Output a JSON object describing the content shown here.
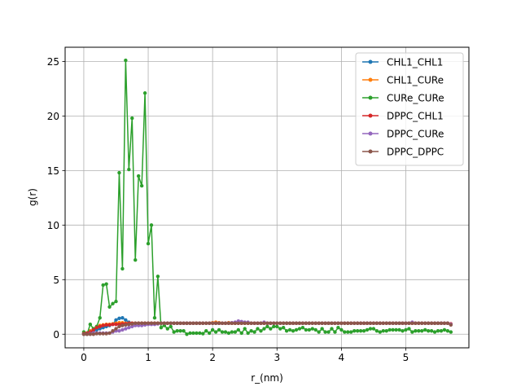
{
  "chart_data": {
    "type": "line",
    "title": "",
    "xlabel": "r_(nm)",
    "ylabel": "g(r)",
    "xlim": [
      -0.29,
      5.98
    ],
    "ylim": [
      -1.25,
      26.3
    ],
    "xticks": [
      0,
      1,
      2,
      3,
      4,
      5
    ],
    "yticks": [
      0,
      5,
      10,
      15,
      20,
      25
    ],
    "grid": true,
    "legend_position": "top-right",
    "x": [
      0.0,
      0.05,
      0.1,
      0.15,
      0.2,
      0.25,
      0.3,
      0.35,
      0.4,
      0.45,
      0.5,
      0.55,
      0.6,
      0.65,
      0.7,
      0.75,
      0.8,
      0.85,
      0.9,
      0.95,
      1.0,
      1.05,
      1.1,
      1.15,
      1.2,
      1.25,
      1.3,
      1.35,
      1.4,
      1.45,
      1.5,
      1.55,
      1.6,
      1.65,
      1.7,
      1.75,
      1.8,
      1.85,
      1.9,
      1.95,
      2.0,
      2.05,
      2.1,
      2.15,
      2.2,
      2.25,
      2.3,
      2.35,
      2.4,
      2.45,
      2.5,
      2.55,
      2.6,
      2.65,
      2.7,
      2.75,
      2.8,
      2.85,
      2.9,
      2.95,
      3.0,
      3.05,
      3.1,
      3.15,
      3.2,
      3.25,
      3.3,
      3.35,
      3.4,
      3.45,
      3.5,
      3.55,
      3.6,
      3.65,
      3.7,
      3.75,
      3.8,
      3.85,
      3.9,
      3.95,
      4.0,
      4.05,
      4.1,
      4.15,
      4.2,
      4.25,
      4.3,
      4.35,
      4.4,
      4.45,
      4.5,
      4.55,
      4.6,
      4.65,
      4.7,
      4.75,
      4.8,
      4.85,
      4.9,
      4.95,
      5.0,
      5.05,
      5.1,
      5.15,
      5.2,
      5.25,
      5.3,
      5.35,
      5.4,
      5.45,
      5.5,
      5.55,
      5.6,
      5.65,
      5.7
    ],
    "series": [
      {
        "name": "CHL1_CHL1",
        "color": "#1f77b4",
        "values": [
          0.05,
          0.1,
          0.2,
          0.3,
          0.4,
          0.5,
          0.6,
          0.7,
          0.8,
          0.9,
          1.3,
          1.45,
          1.5,
          1.3,
          1.1,
          1.0,
          0.95,
          1.0,
          1.0,
          1.0,
          1.0,
          1.0,
          1.0,
          1.0,
          1.0,
          1.0,
          1.0,
          1.0,
          1.0,
          1.0,
          1.0,
          1.0,
          1.0,
          1.0,
          1.0,
          1.0,
          1.0,
          1.0,
          1.0,
          1.0,
          1.0,
          1.0,
          1.0,
          1.0,
          1.0,
          1.0,
          1.0,
          1.0,
          1.0,
          1.0,
          1.0,
          1.0,
          1.0,
          1.0,
          1.0,
          1.0,
          1.0,
          1.0,
          1.0,
          1.0,
          1.0,
          1.0,
          1.0,
          1.0,
          1.0,
          1.0,
          1.0,
          1.0,
          1.0,
          1.0,
          1.0,
          1.0,
          1.0,
          1.0,
          1.0,
          1.0,
          1.0,
          1.0,
          1.0,
          1.0,
          1.0,
          1.0,
          1.0,
          1.0,
          1.0,
          1.0,
          1.0,
          1.0,
          1.0,
          1.0,
          1.0,
          1.0,
          1.0,
          1.0,
          1.0,
          1.0,
          1.0,
          1.0,
          1.0,
          1.0,
          1.0,
          1.0,
          1.0,
          1.0,
          1.0,
          1.0,
          1.0,
          1.0,
          1.0,
          1.0,
          1.0,
          1.0,
          1.0,
          1.0,
          0.9
        ]
      },
      {
        "name": "CHL1_CURe",
        "color": "#ff7f0e",
        "values": [
          0.05,
          0.1,
          0.3,
          0.5,
          0.7,
          0.8,
          0.85,
          0.9,
          0.9,
          0.95,
          1.0,
          1.05,
          1.05,
          1.0,
          1.0,
          1.0,
          1.0,
          1.0,
          1.0,
          1.0,
          1.0,
          1.0,
          1.0,
          1.0,
          1.0,
          1.0,
          1.0,
          1.0,
          1.0,
          1.0,
          1.0,
          1.0,
          1.0,
          1.0,
          1.0,
          1.0,
          1.0,
          1.0,
          1.0,
          1.0,
          1.05,
          1.1,
          1.05,
          1.0,
          1.0,
          1.05,
          1.0,
          1.0,
          1.0,
          1.0,
          1.0,
          1.0,
          1.0,
          1.0,
          1.0,
          1.0,
          1.0,
          1.0,
          1.0,
          1.0,
          1.0,
          1.0,
          1.0,
          1.0,
          1.0,
          1.0,
          1.0,
          1.0,
          1.0,
          1.0,
          1.0,
          1.0,
          1.0,
          1.0,
          1.0,
          1.0,
          1.0,
          1.0,
          1.0,
          1.0,
          1.0,
          1.0,
          1.0,
          1.0,
          1.0,
          1.0,
          1.0,
          1.0,
          1.0,
          1.0,
          1.0,
          1.0,
          1.0,
          1.0,
          1.0,
          1.0,
          1.0,
          1.0,
          1.0,
          1.0,
          1.0,
          1.0,
          1.0,
          1.0,
          1.0,
          1.0,
          1.0,
          1.0,
          1.0,
          1.0,
          1.0,
          1.0,
          1.0,
          1.0,
          0.9
        ]
      },
      {
        "name": "CURe_CURe",
        "color": "#2ca02c",
        "values": [
          0.2,
          0.0,
          0.9,
          0.5,
          0.7,
          1.5,
          4.5,
          4.6,
          2.5,
          2.8,
          3.0,
          14.8,
          6.0,
          25.1,
          15.1,
          19.8,
          6.8,
          14.5,
          13.6,
          22.1,
          8.3,
          10.0,
          1.5,
          5.3,
          0.6,
          0.8,
          0.5,
          0.7,
          0.2,
          0.3,
          0.3,
          0.3,
          0.0,
          0.1,
          0.1,
          0.1,
          0.1,
          0.05,
          0.3,
          0.1,
          0.4,
          0.2,
          0.4,
          0.2,
          0.2,
          0.1,
          0.2,
          0.2,
          0.4,
          0.1,
          0.5,
          0.1,
          0.3,
          0.2,
          0.5,
          0.3,
          0.5,
          0.7,
          0.5,
          0.7,
          0.7,
          0.5,
          0.6,
          0.3,
          0.4,
          0.3,
          0.4,
          0.5,
          0.6,
          0.4,
          0.4,
          0.5,
          0.4,
          0.2,
          0.5,
          0.2,
          0.2,
          0.5,
          0.2,
          0.6,
          0.4,
          0.2,
          0.2,
          0.2,
          0.3,
          0.3,
          0.3,
          0.3,
          0.4,
          0.5,
          0.5,
          0.3,
          0.2,
          0.3,
          0.3,
          0.4,
          0.4,
          0.4,
          0.4,
          0.3,
          0.4,
          0.5,
          0.2,
          0.3,
          0.3,
          0.3,
          0.4,
          0.3,
          0.3,
          0.2,
          0.3,
          0.3,
          0.4,
          0.3,
          0.2
        ]
      },
      {
        "name": "DPPC_CHL1",
        "color": "#d62728",
        "values": [
          0.05,
          0.1,
          0.2,
          0.4,
          0.6,
          0.7,
          0.8,
          0.85,
          0.85,
          0.9,
          0.9,
          0.9,
          0.95,
          0.95,
          1.0,
          1.0,
          1.0,
          1.0,
          1.0,
          1.0,
          1.0,
          1.0,
          1.0,
          1.0,
          1.0,
          1.0,
          1.0,
          1.0,
          1.0,
          1.0,
          1.0,
          1.0,
          1.0,
          1.0,
          1.0,
          1.0,
          1.0,
          1.0,
          1.0,
          1.0,
          1.0,
          1.0,
          1.0,
          1.0,
          1.0,
          1.0,
          1.0,
          1.0,
          1.0,
          1.0,
          1.0,
          1.0,
          1.0,
          1.0,
          1.0,
          1.0,
          1.0,
          1.0,
          1.0,
          1.0,
          1.0,
          1.0,
          1.0,
          1.0,
          1.0,
          1.0,
          1.0,
          1.0,
          1.0,
          1.0,
          1.0,
          1.0,
          1.0,
          1.0,
          1.0,
          1.0,
          1.0,
          1.0,
          1.0,
          1.0,
          1.0,
          1.0,
          1.0,
          1.0,
          1.0,
          1.0,
          1.0,
          1.0,
          1.0,
          1.0,
          1.0,
          1.0,
          1.0,
          1.0,
          1.0,
          1.0,
          1.0,
          1.0,
          1.0,
          1.0,
          1.0,
          1.0,
          1.0,
          1.0,
          1.0,
          1.0,
          1.0,
          1.0,
          1.0,
          1.0,
          1.0,
          1.0,
          1.0,
          1.0,
          0.95
        ]
      },
      {
        "name": "DPPC_CURe",
        "color": "#9467bd",
        "values": [
          0.0,
          0.0,
          0.05,
          0.1,
          0.1,
          0.1,
          0.1,
          0.1,
          0.1,
          0.2,
          0.3,
          0.3,
          0.4,
          0.5,
          0.6,
          0.7,
          0.8,
          0.8,
          0.8,
          0.85,
          0.9,
          0.9,
          0.9,
          0.95,
          1.0,
          1.0,
          1.0,
          1.0,
          1.0,
          1.0,
          1.0,
          1.0,
          1.0,
          1.0,
          1.0,
          1.0,
          1.0,
          1.0,
          1.0,
          1.0,
          1.0,
          1.0,
          1.0,
          1.0,
          1.0,
          1.0,
          1.05,
          1.1,
          1.2,
          1.15,
          1.1,
          1.1,
          1.0,
          1.0,
          1.0,
          1.0,
          1.1,
          1.0,
          1.0,
          1.0,
          1.0,
          1.0,
          1.0,
          1.0,
          1.0,
          1.0,
          1.0,
          1.0,
          1.0,
          1.0,
          1.0,
          1.0,
          1.0,
          1.0,
          1.0,
          1.0,
          1.0,
          1.0,
          1.0,
          1.0,
          1.0,
          1.0,
          1.0,
          1.0,
          1.0,
          1.0,
          1.0,
          1.0,
          1.0,
          1.0,
          1.0,
          1.0,
          1.0,
          1.0,
          1.0,
          1.0,
          1.0,
          1.0,
          1.0,
          1.0,
          1.0,
          1.0,
          1.1,
          1.0,
          1.0,
          1.0,
          1.0,
          1.0,
          1.0,
          1.0,
          1.0,
          1.0,
          1.0,
          1.0,
          0.9
        ]
      },
      {
        "name": "DPPC_DPPC",
        "color": "#8c564b",
        "values": [
          0.0,
          0.0,
          0.0,
          0.0,
          0.05,
          0.05,
          0.05,
          0.05,
          0.1,
          0.3,
          0.5,
          0.7,
          0.8,
          0.85,
          0.9,
          0.95,
          1.0,
          1.0,
          1.0,
          1.0,
          1.0,
          1.0,
          1.0,
          1.0,
          1.0,
          1.0,
          1.0,
          1.0,
          1.0,
          1.0,
          1.0,
          1.0,
          1.0,
          1.0,
          1.0,
          1.0,
          1.0,
          1.0,
          1.0,
          1.0,
          1.0,
          1.0,
          1.0,
          1.0,
          1.0,
          1.0,
          1.0,
          1.0,
          1.0,
          1.0,
          1.0,
          1.0,
          1.0,
          1.0,
          1.0,
          1.0,
          1.0,
          1.0,
          1.0,
          1.0,
          1.0,
          1.0,
          1.0,
          1.0,
          1.0,
          1.0,
          1.0,
          1.0,
          1.0,
          1.0,
          1.0,
          1.0,
          1.0,
          1.0,
          1.0,
          1.0,
          1.0,
          1.0,
          1.0,
          1.0,
          1.0,
          1.0,
          1.0,
          1.0,
          1.0,
          1.0,
          1.0,
          1.0,
          1.0,
          1.0,
          1.0,
          1.0,
          1.0,
          1.0,
          1.0,
          1.0,
          1.0,
          1.0,
          1.0,
          1.0,
          1.0,
          1.0,
          1.0,
          1.0,
          1.0,
          1.0,
          1.0,
          1.0,
          1.0,
          1.0,
          1.0,
          1.0,
          1.0,
          1.0,
          0.85
        ]
      }
    ]
  }
}
